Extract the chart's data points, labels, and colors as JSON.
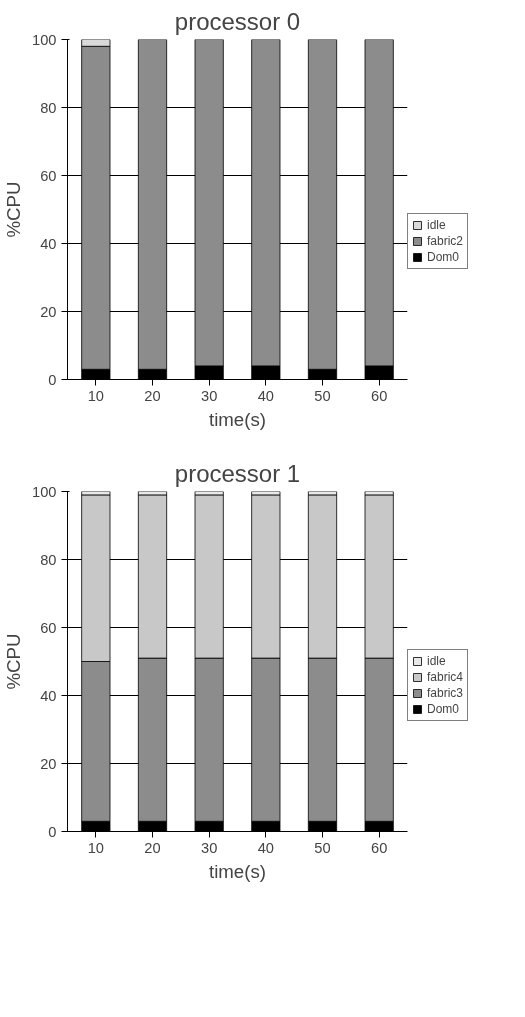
{
  "chart_data": [
    {
      "type": "bar",
      "title": "processor 0",
      "xlabel": "time(s)",
      "ylabel": "%CPU",
      "categories": [
        "10",
        "20",
        "30",
        "40",
        "50",
        "60"
      ],
      "stacked": true,
      "ylim": [
        0,
        100
      ],
      "yticks": [
        0,
        20,
        40,
        60,
        80,
        100
      ],
      "grid": "y",
      "legend": "right",
      "series": [
        {
          "name": "Dom0",
          "color": "#000000",
          "values": [
            3,
            3,
            4,
            4,
            3,
            4
          ]
        },
        {
          "name": "fabric2",
          "color": "#8c8c8c",
          "values": [
            95,
            97,
            96,
            96,
            97,
            96
          ]
        },
        {
          "name": "idle",
          "color": "#d9d9d9",
          "values": [
            2,
            0,
            0,
            0,
            0,
            0
          ]
        }
      ]
    },
    {
      "type": "bar",
      "title": "processor 1",
      "xlabel": "time(s)",
      "ylabel": "%CPU",
      "categories": [
        "10",
        "20",
        "30",
        "40",
        "50",
        "60"
      ],
      "stacked": true,
      "ylim": [
        0,
        100
      ],
      "yticks": [
        0,
        20,
        40,
        60,
        80,
        100
      ],
      "grid": "y",
      "legend": "right",
      "series": [
        {
          "name": "Dom0",
          "color": "#000000",
          "values": [
            3,
            3,
            3,
            3,
            3,
            3
          ]
        },
        {
          "name": "fabric3",
          "color": "#8c8c8c",
          "values": [
            47,
            48,
            48,
            48,
            48,
            48
          ]
        },
        {
          "name": "fabric4",
          "color": "#c8c8c8",
          "values": [
            49,
            48,
            48,
            48,
            48,
            48
          ]
        },
        {
          "name": "idle",
          "color": "#e8e8e8",
          "values": [
            1,
            1,
            1,
            1,
            1,
            1
          ]
        }
      ]
    }
  ]
}
